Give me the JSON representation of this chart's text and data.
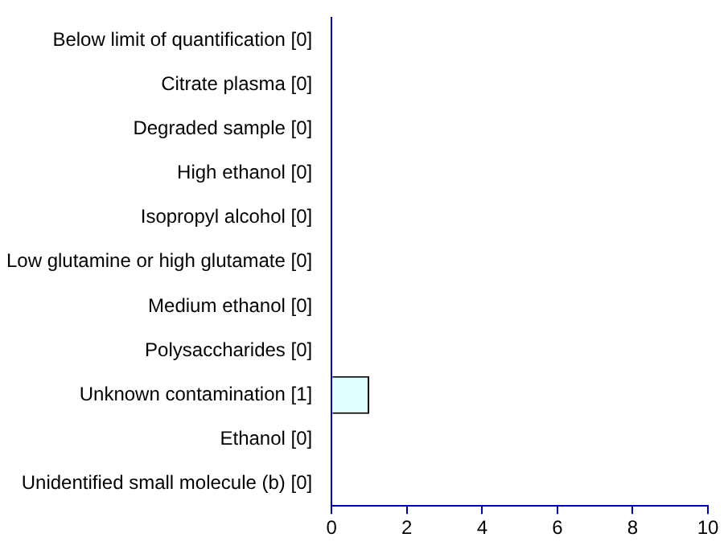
{
  "chart_data": {
    "type": "bar",
    "orientation": "horizontal",
    "categories": [
      "Below limit of quantification [0]",
      "Citrate plasma [0]",
      "Degraded sample [0]",
      "High ethanol [0]",
      "Isopropyl alcohol [0]",
      "Low glutamine or high glutamate [0]",
      "Medium ethanol [0]",
      "Polysaccharides [0]",
      "Unknown contamination [1]",
      "Ethanol [0]",
      "Unidentified small molecule (b) [0]"
    ],
    "values": [
      0,
      0,
      0,
      0,
      0,
      0,
      0,
      0,
      1,
      0,
      0
    ],
    "color": "#e0ffff",
    "xlim": [
      0,
      10
    ],
    "xticks": [
      0,
      2,
      4,
      6,
      8,
      10
    ]
  }
}
